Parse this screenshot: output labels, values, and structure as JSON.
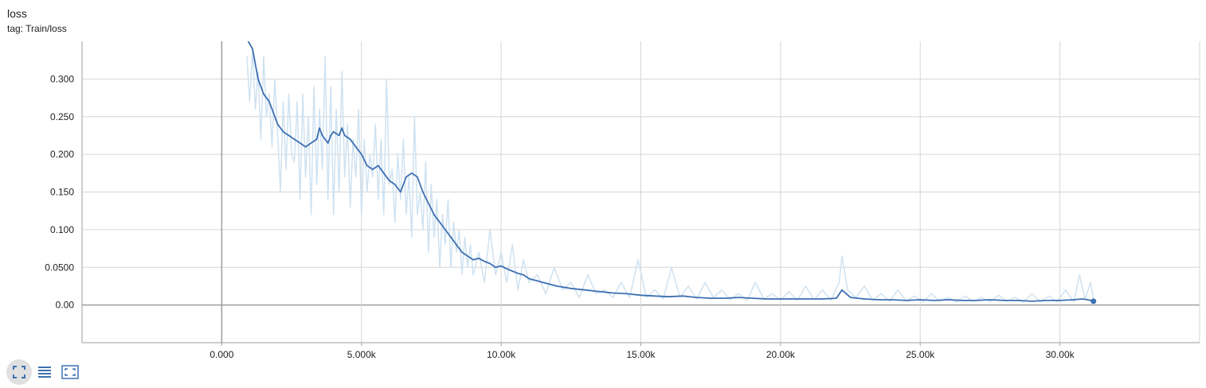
{
  "header": {
    "title": "loss",
    "subtitle": "tag: Train/loss"
  },
  "toolbar": {
    "buttons": [
      {
        "icon": "fullscreen-icon",
        "active": true
      },
      {
        "icon": "list-icon",
        "active": false
      },
      {
        "icon": "fit-domain-icon",
        "active": false
      }
    ]
  },
  "colors": {
    "smoothed": "#3d70b2",
    "raw": "#cfe2f1",
    "grid": "#d6d6d6",
    "axis": "#9e9e9e"
  },
  "chart_data": {
    "type": "line",
    "title": "loss",
    "subtitle": "tag: Train/loss",
    "xlabel": "",
    "ylabel": "",
    "xlim": [
      -5000,
      35000
    ],
    "ylim": [
      -0.05,
      0.35
    ],
    "x_ticks": [
      {
        "value": 0,
        "label": "0.000"
      },
      {
        "value": 5000,
        "label": "5.000k"
      },
      {
        "value": 10000,
        "label": "10.00k"
      },
      {
        "value": 15000,
        "label": "15.00k"
      },
      {
        "value": 20000,
        "label": "20.00k"
      },
      {
        "value": 25000,
        "label": "25.00k"
      },
      {
        "value": 30000,
        "label": "30.00k"
      }
    ],
    "y_ticks": [
      {
        "value": 0.0,
        "label": "0.00"
      },
      {
        "value": 0.05,
        "label": "0.0500"
      },
      {
        "value": 0.1,
        "label": "0.100"
      },
      {
        "value": 0.15,
        "label": "0.150"
      },
      {
        "value": 0.2,
        "label": "0.200"
      },
      {
        "value": 0.25,
        "label": "0.250"
      },
      {
        "value": 0.3,
        "label": "0.300"
      }
    ],
    "grid": true,
    "series": [
      {
        "smoothed": true,
        "x": [
          800,
          1100,
          1200,
          1300,
          1500,
          1700,
          1900,
          2000,
          2200,
          2400,
          2600,
          2800,
          3000,
          3200,
          3400,
          3500,
          3600,
          3800,
          3900,
          4000,
          4200,
          4300,
          4400,
          4600,
          4800,
          5000,
          5200,
          5400,
          5600,
          5800,
          6000,
          6200,
          6400,
          6600,
          6800,
          7000,
          7200,
          7400,
          7600,
          7800,
          8000,
          8200,
          8400,
          8600,
          8800,
          9000,
          9200,
          9400,
          9600,
          9800,
          10000,
          10200,
          10400,
          10600,
          10800,
          11000,
          11500,
          12000,
          12500,
          13000,
          13500,
          14000,
          14500,
          15000,
          15500,
          16000,
          16500,
          17000,
          17500,
          18000,
          18500,
          19000,
          19500,
          20000,
          20500,
          21000,
          21500,
          22000,
          22200,
          22500,
          23000,
          23500,
          24000,
          24500,
          25000,
          25500,
          26000,
          26500,
          27000,
          27500,
          28000,
          28500,
          29000,
          29500,
          30000,
          30500,
          30800,
          31000,
          31200
        ],
        "values": [
          0.36,
          0.34,
          0.32,
          0.3,
          0.28,
          0.27,
          0.25,
          0.24,
          0.23,
          0.225,
          0.22,
          0.215,
          0.21,
          0.215,
          0.22,
          0.235,
          0.225,
          0.215,
          0.225,
          0.23,
          0.225,
          0.235,
          0.225,
          0.22,
          0.21,
          0.2,
          0.185,
          0.18,
          0.185,
          0.175,
          0.165,
          0.16,
          0.15,
          0.17,
          0.175,
          0.17,
          0.15,
          0.135,
          0.12,
          0.11,
          0.1,
          0.09,
          0.08,
          0.07,
          0.065,
          0.06,
          0.062,
          0.058,
          0.055,
          0.05,
          0.052,
          0.048,
          0.045,
          0.042,
          0.04,
          0.035,
          0.03,
          0.025,
          0.022,
          0.02,
          0.018,
          0.016,
          0.015,
          0.013,
          0.012,
          0.011,
          0.012,
          0.01,
          0.009,
          0.009,
          0.01,
          0.009,
          0.008,
          0.008,
          0.008,
          0.008,
          0.008,
          0.009,
          0.02,
          0.01,
          0.008,
          0.007,
          0.007,
          0.006,
          0.007,
          0.006,
          0.007,
          0.006,
          0.006,
          0.007,
          0.006,
          0.006,
          0.005,
          0.006,
          0.006,
          0.007,
          0.008,
          0.007,
          0.005
        ]
      },
      {
        "smoothed": false,
        "x": [
          900,
          1000,
          1100,
          1200,
          1300,
          1400,
          1500,
          1600,
          1700,
          1800,
          1900,
          2000,
          2100,
          2200,
          2300,
          2400,
          2500,
          2600,
          2700,
          2800,
          2900,
          3000,
          3100,
          3200,
          3300,
          3400,
          3500,
          3600,
          3700,
          3800,
          3900,
          4000,
          4100,
          4200,
          4300,
          4400,
          4500,
          4600,
          4700,
          4800,
          4900,
          5000,
          5100,
          5200,
          5300,
          5400,
          5500,
          5600,
          5700,
          5800,
          5900,
          6000,
          6100,
          6200,
          6300,
          6400,
          6500,
          6600,
          6700,
          6800,
          6900,
          7000,
          7100,
          7200,
          7300,
          7400,
          7500,
          7600,
          7700,
          7800,
          7900,
          8000,
          8100,
          8200,
          8300,
          8400,
          8500,
          8600,
          8700,
          8800,
          8900,
          9000,
          9200,
          9400,
          9600,
          9800,
          10000,
          10200,
          10400,
          10600,
          10800,
          11000,
          11300,
          11600,
          11900,
          12200,
          12500,
          12800,
          13100,
          13400,
          13700,
          14000,
          14300,
          14600,
          14900,
          15200,
          15500,
          15800,
          16100,
          16400,
          16700,
          17000,
          17300,
          17600,
          17900,
          18200,
          18500,
          18800,
          19100,
          19400,
          19700,
          20000,
          20300,
          20600,
          20900,
          21200,
          21500,
          21800,
          22100,
          22200,
          22400,
          22700,
          23000,
          23300,
          23600,
          23900,
          24200,
          24500,
          24800,
          25100,
          25400,
          25700,
          26000,
          26300,
          26600,
          26900,
          27200,
          27500,
          27800,
          28100,
          28400,
          28700,
          29000,
          29300,
          29600,
          29900,
          30200,
          30500,
          30700,
          30900,
          31100,
          31200
        ],
        "values": [
          0.33,
          0.27,
          0.34,
          0.26,
          0.31,
          0.22,
          0.33,
          0.25,
          0.28,
          0.21,
          0.3,
          0.23,
          0.15,
          0.27,
          0.18,
          0.28,
          0.2,
          0.19,
          0.27,
          0.14,
          0.28,
          0.17,
          0.25,
          0.12,
          0.29,
          0.16,
          0.26,
          0.18,
          0.33,
          0.14,
          0.29,
          0.12,
          0.26,
          0.15,
          0.31,
          0.17,
          0.24,
          0.13,
          0.22,
          0.17,
          0.26,
          0.12,
          0.22,
          0.15,
          0.2,
          0.17,
          0.24,
          0.14,
          0.22,
          0.12,
          0.3,
          0.16,
          0.18,
          0.11,
          0.2,
          0.14,
          0.22,
          0.12,
          0.17,
          0.09,
          0.25,
          0.12,
          0.15,
          0.1,
          0.19,
          0.07,
          0.16,
          0.09,
          0.14,
          0.05,
          0.12,
          0.08,
          0.14,
          0.05,
          0.11,
          0.07,
          0.1,
          0.04,
          0.09,
          0.05,
          0.08,
          0.04,
          0.07,
          0.03,
          0.1,
          0.04,
          0.07,
          0.03,
          0.08,
          0.02,
          0.06,
          0.03,
          0.04,
          0.015,
          0.05,
          0.02,
          0.03,
          0.01,
          0.04,
          0.015,
          0.02,
          0.01,
          0.03,
          0.01,
          0.06,
          0.01,
          0.02,
          0.008,
          0.05,
          0.01,
          0.025,
          0.008,
          0.03,
          0.01,
          0.02,
          0.007,
          0.015,
          0.006,
          0.03,
          0.008,
          0.015,
          0.006,
          0.018,
          0.006,
          0.025,
          0.007,
          0.02,
          0.006,
          0.03,
          0.065,
          0.02,
          0.01,
          0.025,
          0.006,
          0.015,
          0.005,
          0.02,
          0.005,
          0.012,
          0.004,
          0.015,
          0.005,
          0.01,
          0.004,
          0.012,
          0.005,
          0.01,
          0.004,
          0.013,
          0.005,
          0.01,
          0.004,
          0.015,
          0.004,
          0.012,
          0.004,
          0.02,
          0.004,
          0.04,
          0.008,
          0.03,
          0.006
        ]
      }
    ]
  }
}
